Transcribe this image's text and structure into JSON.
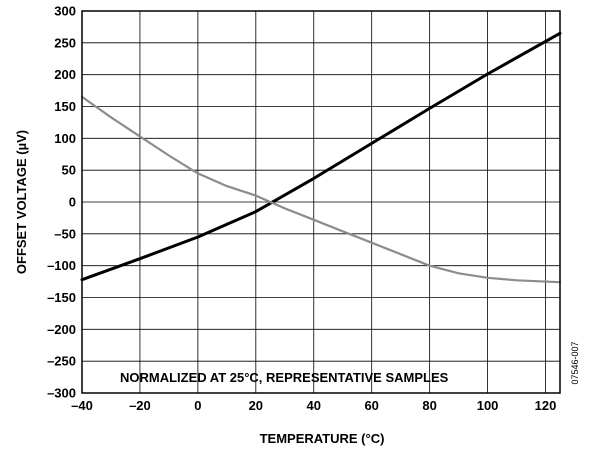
{
  "chart_data": {
    "type": "line",
    "xlabel": "TEMPERATURE (°C)",
    "ylabel": "OFFSET VOLTAGE (µV)",
    "xlim": [
      -40,
      125
    ],
    "ylim": [
      -300,
      300
    ],
    "x_ticks": [
      -40,
      -20,
      0,
      20,
      40,
      60,
      80,
      100,
      120
    ],
    "x_tick_labels": [
      "–40",
      "–20",
      "0",
      "20",
      "40",
      "60",
      "80",
      "100",
      "120"
    ],
    "y_ticks": [
      -300,
      -250,
      -200,
      -150,
      -100,
      -50,
      0,
      50,
      100,
      150,
      200,
      250,
      300
    ],
    "y_tick_labels": [
      "–300",
      "–250",
      "–200",
      "–150",
      "–100",
      "–50",
      "0",
      "50",
      "100",
      "150",
      "200",
      "250",
      "300"
    ],
    "grid": true,
    "annotation": "NORMALIZED AT 25°C, REPRESENTATIVE SAMPLES",
    "figure_id": "07546-007",
    "series": [
      {
        "color": "#000000",
        "x": [
          -40,
          -20,
          0,
          20,
          25,
          40,
          60,
          80,
          100,
          125
        ],
        "values": [
          -122,
          -89,
          -55,
          -15,
          -2,
          37,
          92,
          147,
          201,
          265
        ]
      },
      {
        "color": "#8c8c8c",
        "x": [
          -40,
          -30,
          -20,
          -10,
          0,
          10,
          20,
          25,
          30,
          40,
          50,
          60,
          70,
          80,
          90,
          100,
          110,
          125
        ],
        "values": [
          165,
          133,
          103,
          73,
          45,
          25,
          10,
          0,
          -10,
          -28,
          -46,
          -64,
          -82,
          -100,
          -112,
          -119,
          -123,
          -126
        ]
      }
    ]
  }
}
